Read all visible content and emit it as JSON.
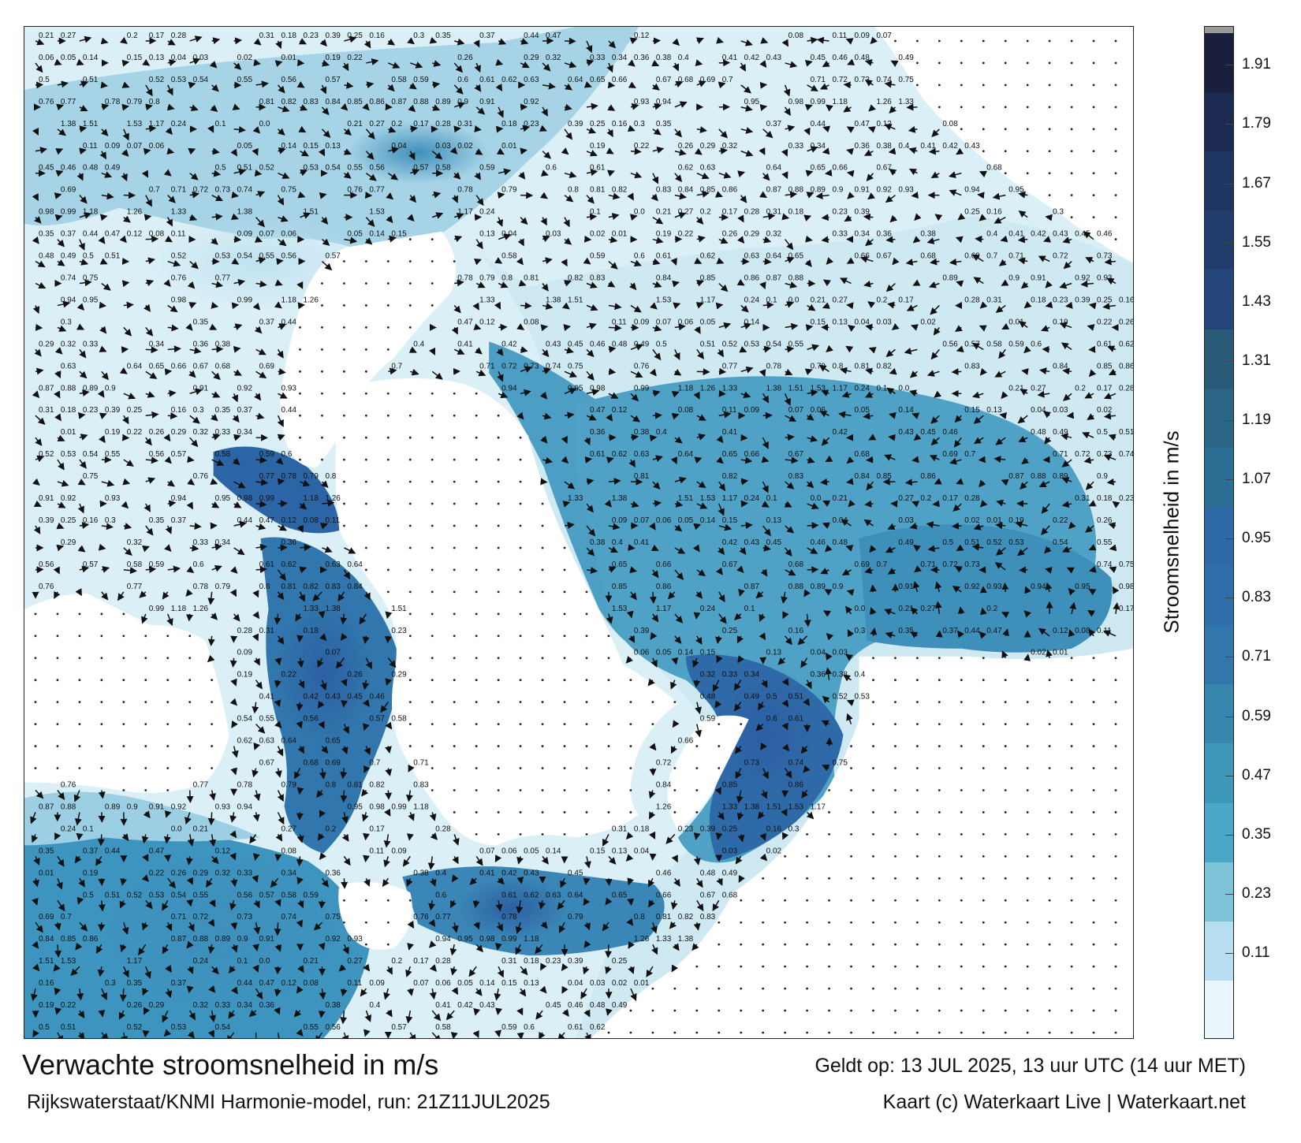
{
  "title": "Verwachte stroomsnelheid in m/s",
  "subtitle": "Rijkswaterstaat/KNMI Harmonie-model, run: 21Z11JUL2025",
  "valid_time": "Geldt op: 13 JUL 2025, 13 uur UTC (14 uur MET)",
  "credit": "Kaart (c) Waterkaart Live | Waterkaart.net",
  "legend": {
    "label": "Stroomsnelheid in m/s",
    "ticks": [
      "1.91",
      "1.79",
      "1.67",
      "1.55",
      "1.43",
      "1.31",
      "1.19",
      "1.07",
      "0.95",
      "0.83",
      "0.71",
      "0.59",
      "0.47",
      "0.35",
      "0.23",
      "0.11"
    ],
    "colors": [
      "#1a1f3d",
      "#1c2a52",
      "#1e3461",
      "#223d6d",
      "#25467a",
      "#295a78",
      "#2a6585",
      "#2b6f95",
      "#2d6aa6",
      "#2f6ea8",
      "#3277ab",
      "#3686ae",
      "#3d97b8",
      "#4aa8c6",
      "#7cc3d8",
      "#b6def0",
      "#e9f6fb"
    ],
    "top_color": "#9a9a9a"
  },
  "colors": {
    "land": "#ffffff",
    "water_low": "#dff1f8",
    "water_mid": "#54a7c9",
    "water_high": "#2c65a6",
    "arrow": "#111111"
  },
  "icons": [
    "current-arrow-icon"
  ],
  "sample_values": [
    "0.21",
    "0.27",
    "0.2",
    "0.17",
    "0.28",
    "0.31",
    "0.18",
    "0.23",
    "0.39",
    "0.25",
    "0.16",
    "0.3",
    "0.35",
    "0.37",
    "0.44",
    "0.47",
    "0.12",
    "0.08",
    "0.11",
    "0.09",
    "0.07",
    "0.06",
    "0.05",
    "0.14",
    "0.15",
    "0.13",
    "0.04",
    "0.03",
    "0.02",
    "0.01",
    "0.19",
    "0.22",
    "0.26",
    "0.29",
    "0.32",
    "0.33",
    "0.34",
    "0.36",
    "0.38",
    "0.4",
    "0.41",
    "0.42",
    "0.43",
    "0.45",
    "0.46",
    "0.48",
    "0.49",
    "0.5",
    "0.51",
    "0.52",
    "0.53",
    "0.54",
    "0.55",
    "0.56",
    "0.57",
    "0.58",
    "0.59",
    "0.6",
    "0.61",
    "0.62",
    "0.63",
    "0.64",
    "0.65",
    "0.66",
    "0.67",
    "0.68",
    "0.69",
    "0.7",
    "0.71",
    "0.72",
    "0.73",
    "0.74",
    "0.75",
    "0.76",
    "0.77",
    "0.78",
    "0.79",
    "0.8",
    "0.81",
    "0.82",
    "0.83",
    "0.84",
    "0.85",
    "0.86",
    "0.87",
    "0.88",
    "0.89",
    "0.9",
    "0.91",
    "0.92",
    "0.93",
    "0.94",
    "0.95",
    "0.98",
    "0.99",
    "1.18",
    "1.26",
    "1.33",
    "1.38",
    "1.51",
    "1.53",
    "1.17",
    "0.24",
    "0.1",
    "0.0"
  ]
}
